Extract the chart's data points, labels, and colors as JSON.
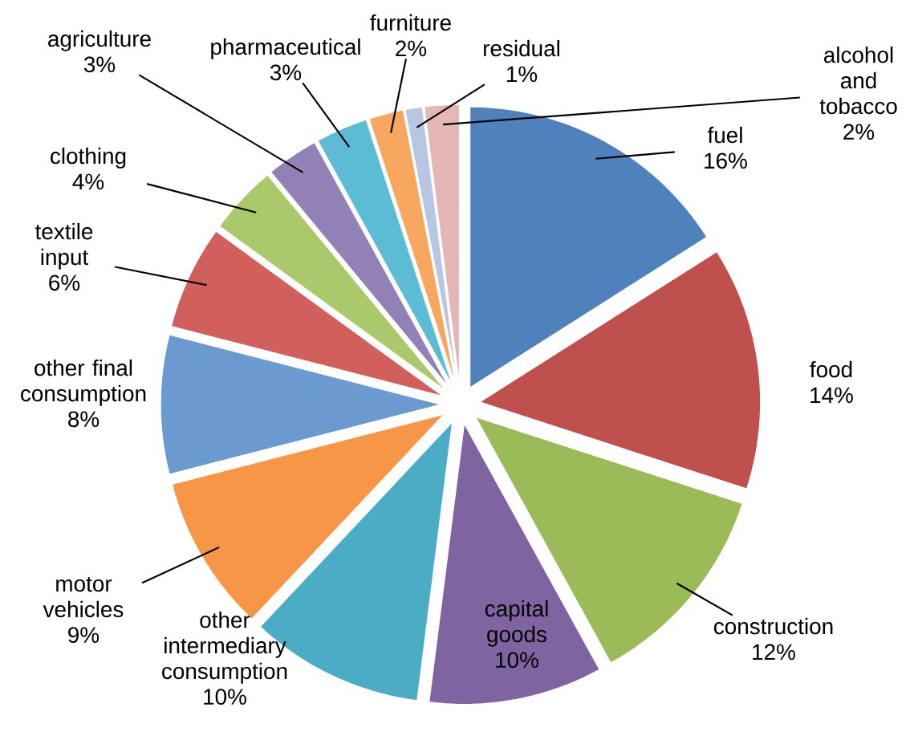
{
  "chart_data": {
    "type": "pie",
    "categories": [
      "fuel",
      "food",
      "construction",
      "capital goods",
      "other intermediary consumption",
      "motor vehicles",
      "other final consumption",
      "textile input",
      "clothing",
      "agriculture",
      "pharmaceutical",
      "furniture",
      "residual",
      "alcohol and tobacco"
    ],
    "values": [
      16,
      14,
      12,
      10,
      10,
      9,
      8,
      6,
      4,
      3,
      3,
      2,
      1,
      2
    ],
    "value_labels": [
      "16%",
      "14%",
      "12%",
      "10%",
      "10%",
      "9%",
      "8%",
      "6%",
      "4%",
      "3%",
      "3%",
      "2%",
      "1%",
      "2%"
    ],
    "colors": [
      "#4f81bd",
      "#c0504d",
      "#9bbb59",
      "#8064a2",
      "#4bacc6",
      "#f79646",
      "#6a9ad0",
      "#d1605d",
      "#a9c96a",
      "#9281b6",
      "#5dbcd5",
      "#f8a85e",
      "#b7c6e3",
      "#e4b7b6"
    ]
  }
}
